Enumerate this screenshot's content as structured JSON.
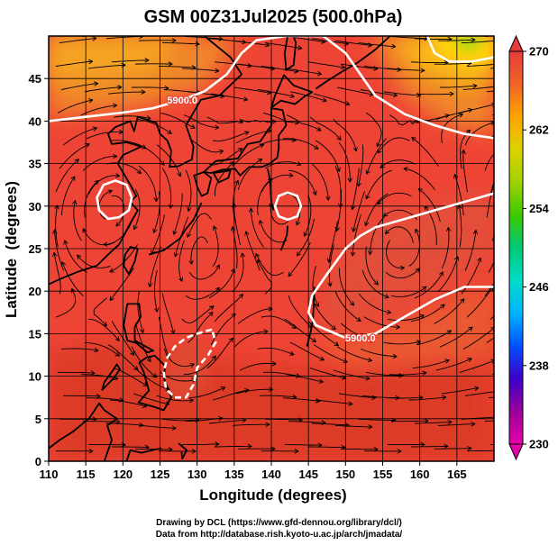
{
  "chart_data": {
    "type": "heatmap",
    "title": "GSM 00Z31Jul2025 (500.0hPa)",
    "xlabel": "Longitude (degrees)",
    "ylabel": "Latitude  (degrees)",
    "xlim": [
      110,
      170
    ],
    "ylim": [
      0,
      50
    ],
    "xticks": [
      110,
      115,
      120,
      125,
      130,
      135,
      140,
      145,
      150,
      155,
      160,
      165
    ],
    "yticks": [
      0,
      5,
      10,
      15,
      20,
      25,
      30,
      35,
      40,
      45
    ],
    "grid": true,
    "field": "temperature (K, color shading)",
    "overlays": [
      "streamlines (wind)",
      "geopotential height contour 5900 m",
      "coastlines"
    ],
    "contour_labels": [
      {
        "text": "5900.0",
        "lon": 128,
        "lat": 42.5
      },
      {
        "text": "5900.0",
        "lon": 152,
        "lat": 14.5
      }
    ],
    "contour_5900": [
      {
        "name": "north-boundary",
        "points": [
          [
            110,
            40
          ],
          [
            115,
            40.5
          ],
          [
            120,
            41
          ],
          [
            124,
            41.5
          ],
          [
            128,
            42.5
          ],
          [
            131,
            43.5
          ],
          [
            134,
            45.5
          ],
          [
            136,
            48
          ],
          [
            138,
            49.5
          ],
          [
            142,
            50
          ],
          [
            147,
            50
          ],
          [
            150,
            48
          ],
          [
            152,
            45.5
          ],
          [
            154,
            43
          ],
          [
            158,
            40.8
          ],
          [
            162,
            39.5
          ],
          [
            166,
            38.5
          ],
          [
            170,
            38
          ]
        ]
      },
      {
        "name": "ne-corner",
        "points": [
          [
            161,
            50
          ],
          [
            162,
            48
          ],
          [
            164,
            47
          ],
          [
            167,
            47
          ],
          [
            170,
            47.5
          ]
        ]
      },
      {
        "name": "south-boundary",
        "points": [
          [
            170,
            31.5
          ],
          [
            166,
            30.5
          ],
          [
            162,
            29.5
          ],
          [
            158,
            28.5
          ],
          [
            154,
            27.5
          ],
          [
            152,
            26.5
          ],
          [
            150,
            25
          ],
          [
            147.5,
            22
          ],
          [
            145.5,
            19.5
          ],
          [
            145,
            17.5
          ],
          [
            146,
            16
          ],
          [
            150,
            14.5
          ],
          [
            154,
            15
          ],
          [
            158,
            17
          ],
          [
            162,
            19
          ],
          [
            166,
            20.5
          ],
          [
            170,
            20.5
          ]
        ]
      },
      {
        "name": "high-119-31",
        "points": [
          [
            116.5,
            31
          ],
          [
            116.8,
            29.5
          ],
          [
            118,
            28.5
          ],
          [
            119.5,
            28.7
          ],
          [
            120.8,
            29.5
          ],
          [
            121.2,
            31
          ],
          [
            120.5,
            32.5
          ],
          [
            119,
            33
          ],
          [
            117.4,
            32.5
          ]
        ]
      },
      {
        "name": "high-142-30",
        "points": [
          [
            140.5,
            30
          ],
          [
            141,
            28.8
          ],
          [
            142.2,
            28.4
          ],
          [
            143.5,
            28.8
          ],
          [
            144,
            30
          ],
          [
            143.5,
            31.2
          ],
          [
            142.2,
            31.6
          ],
          [
            141,
            31.2
          ]
        ]
      },
      {
        "name": "low-philippines",
        "points": [
          [
            132,
            15.5
          ],
          [
            130,
            15
          ],
          [
            128.5,
            14.5
          ],
          [
            127,
            13.5
          ],
          [
            126,
            12.2
          ],
          [
            125.5,
            10.5
          ],
          [
            125.8,
            8.5
          ],
          [
            127,
            7.5
          ],
          [
            128.5,
            7.5
          ],
          [
            129.5,
            9
          ],
          [
            130,
            11
          ],
          [
            131.5,
            12.5
          ],
          [
            132.5,
            14
          ]
        ]
      }
    ],
    "colorbar": {
      "min": 230,
      "max": 270,
      "ticks": [
        230,
        238,
        246,
        254,
        262,
        270
      ],
      "colors": [
        "#e600aa",
        "#9b009b",
        "#3c00c8",
        "#0050ff",
        "#00b4ff",
        "#00dcc8",
        "#00c878",
        "#3cc800",
        "#a0d200",
        "#dcd200",
        "#ffa500",
        "#f06428",
        "#e63c3c"
      ],
      "extend": "both"
    },
    "colors": {
      "warm_main": "#ee4436",
      "warm_dark": "#dc3a28",
      "orange": "#f08a2c",
      "yellow": "#ffd20a",
      "lime": "#a8dc0a",
      "green": "#3cc800",
      "contour": "#ffffff",
      "coast": "#000000",
      "stream": "#000000"
    }
  },
  "credits": {
    "line1": "Drawing by DCL (https://www.gfd-dennou.org/library/dcl/)",
    "line2": "Data from http://database.rish.kyoto-u.ac.jp/arch/jmadata/"
  }
}
